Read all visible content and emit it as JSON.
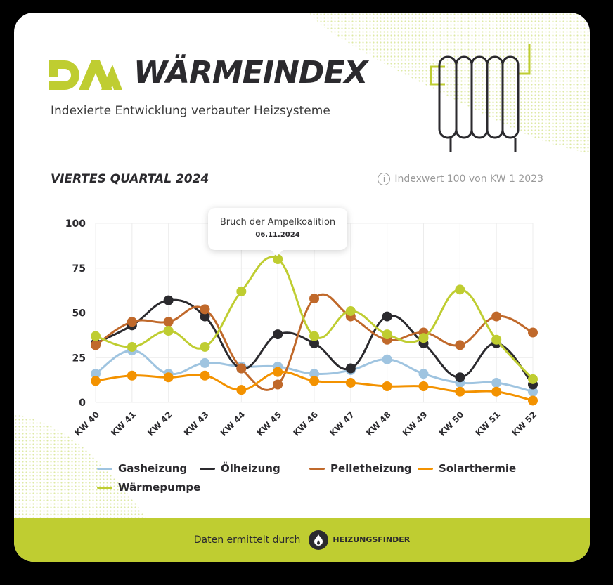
{
  "header": {
    "logo_text": "DAA",
    "title": "WÄRMEINDEX",
    "subtitle": "Indexierte Entwicklung verbauter Heizsysteme"
  },
  "section": {
    "quarter": "VIERTES QUARTAL 2024",
    "info_icon": "info-icon",
    "info_text": "Indexwert 100 von KW 1 2023"
  },
  "tooltip": {
    "title": "Bruch der Ampelkoalition",
    "date": "06.11.2024",
    "anchor_category": "KW 45"
  },
  "footer": {
    "text": "Daten ermittelt durch",
    "brand_icon": "flame-icon",
    "brand": "HEIZUNGSFINDER"
  },
  "colors": {
    "accent": "#bfcd31",
    "dark": "#2b2a2e",
    "Gasheizung": "#9fc4e0",
    "Ölheizung": "#2b2a2e",
    "Pelletheizung": "#c0692b",
    "Solarthermie": "#f39200",
    "Wärmepumpe": "#bfcd31"
  },
  "chart_data": {
    "type": "line",
    "title": "VIERTES QUARTAL 2024",
    "subtitle": "Indexwert 100 von KW 1 2023",
    "xlabel": "",
    "ylabel": "",
    "ylim": [
      0,
      100
    ],
    "yticks": [
      0,
      25,
      50,
      75,
      100
    ],
    "grid": true,
    "legend_position": "bottom",
    "categories": [
      "KW 40",
      "KW 41",
      "KW 42",
      "KW 43",
      "KW 44",
      "KW 45",
      "KW 46",
      "KW 47",
      "KW 48",
      "KW 49",
      "KW 50",
      "KW 51",
      "KW 52"
    ],
    "series": [
      {
        "name": "Gasheizung",
        "color": "#9fc4e0",
        "values": [
          16,
          29,
          16,
          22,
          20,
          20,
          16,
          18,
          24,
          16,
          11,
          11,
          6
        ]
      },
      {
        "name": "Ölheizung",
        "color": "#2b2a2e",
        "values": [
          33,
          43,
          57,
          48,
          19,
          38,
          33,
          19,
          48,
          33,
          14,
          33,
          10
        ]
      },
      {
        "name": "Pelletheizung",
        "color": "#c0692b",
        "values": [
          32,
          45,
          45,
          52,
          19,
          10,
          58,
          48,
          35,
          39,
          32,
          48,
          39
        ]
      },
      {
        "name": "Solarthermie",
        "color": "#f39200",
        "values": [
          12,
          15,
          14,
          15,
          7,
          17,
          12,
          11,
          9,
          9,
          6,
          6,
          1
        ]
      },
      {
        "name": "Wärmepumpe",
        "color": "#bfcd31",
        "values": [
          37,
          31,
          40,
          31,
          62,
          80,
          37,
          51,
          38,
          36,
          63,
          35,
          13
        ]
      }
    ],
    "annotations": [
      {
        "category": "KW 45",
        "text": "Bruch der Ampelkoalition",
        "date": "06.11.2024"
      }
    ]
  }
}
